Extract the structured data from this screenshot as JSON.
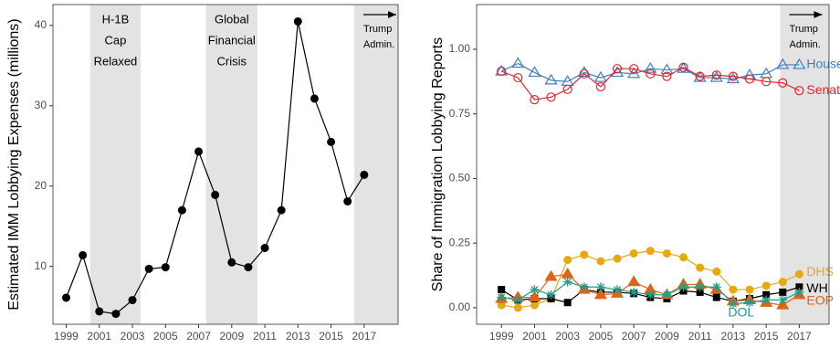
{
  "chart_data": [
    {
      "type": "line",
      "y_label": "Estimated IMM Lobbying Expenses (millions)",
      "x": [
        1999,
        2000,
        2001,
        2002,
        2003,
        2004,
        2005,
        2006,
        2007,
        2008,
        2009,
        2010,
        2011,
        2012,
        2013,
        2014,
        2015,
        2016,
        2017
      ],
      "series": [
        {
          "name": null,
          "color": "#000000",
          "marker": "circle",
          "values": [
            6.1,
            11.4,
            4.4,
            4.1,
            5.8,
            9.7,
            9.9,
            17.0,
            24.3,
            18.9,
            10.5,
            9.9,
            12.3,
            17.0,
            40.5,
            30.9,
            25.5,
            18.1,
            21.4
          ]
        }
      ],
      "xlim": [
        1998.2,
        2019.05
      ],
      "ylim": [
        2.8,
        42.6
      ],
      "xticks": [
        1999,
        2001,
        2003,
        2005,
        2007,
        2009,
        2011,
        2013,
        2015,
        2017
      ],
      "yticks": [
        10,
        20,
        30,
        40
      ],
      "shaded_regions": [
        {
          "start": 2000.45,
          "end": 2003.5,
          "label": [
            "H-1B",
            "Cap",
            "Relaxed"
          ]
        },
        {
          "start": 2007.45,
          "end": 2010.55,
          "label": [
            "Global",
            "Financial",
            "Crisis"
          ]
        },
        {
          "start": 2016.4,
          "end": 2019.05,
          "label": [
            "Trump",
            "Admin."
          ],
          "arrow": true
        }
      ]
    },
    {
      "type": "line",
      "y_label": "Share of Immigration Lobbying Reports",
      "x": [
        1999,
        2000,
        2001,
        2002,
        2003,
        2004,
        2005,
        2006,
        2007,
        2008,
        2009,
        2010,
        2011,
        2012,
        2013,
        2014,
        2015,
        2016,
        2017
      ],
      "series": [
        {
          "name": "House",
          "color": "#3d7fc1",
          "marker": "triangle-open",
          "values": [
            0.915,
            0.945,
            0.91,
            0.88,
            0.875,
            0.91,
            0.89,
            0.91,
            0.905,
            0.925,
            0.92,
            0.925,
            0.89,
            0.89,
            0.885,
            0.9,
            0.905,
            0.94,
            0.94
          ]
        },
        {
          "name": "Senate",
          "color": "#e0262b",
          "marker": "circle-open",
          "values": [
            0.915,
            0.89,
            0.805,
            0.815,
            0.845,
            0.905,
            0.855,
            0.925,
            0.925,
            0.905,
            0.895,
            0.93,
            0.895,
            0.9,
            0.895,
            0.885,
            0.875,
            0.87,
            0.84
          ]
        },
        {
          "name": "DHS",
          "color": "#e8a812",
          "marker": "circle",
          "values": [
            0.01,
            0.0,
            0.01,
            0.035,
            0.185,
            0.205,
            0.18,
            0.19,
            0.21,
            0.22,
            0.21,
            0.195,
            0.155,
            0.14,
            0.07,
            0.07,
            0.085,
            0.1,
            0.13
          ]
        },
        {
          "name": "WH",
          "color": "#000000",
          "marker": "square",
          "values": [
            0.07,
            0.03,
            0.035,
            0.035,
            0.02,
            0.07,
            0.06,
            0.06,
            0.055,
            0.04,
            0.035,
            0.065,
            0.06,
            0.04,
            0.025,
            0.035,
            0.05,
            0.06,
            0.08
          ]
        },
        {
          "name": "EOP",
          "color": "#dd6418",
          "marker": "triangle",
          "values": [
            0.035,
            0.04,
            0.04,
            0.12,
            0.13,
            0.07,
            0.05,
            0.055,
            0.1,
            0.07,
            0.05,
            0.09,
            0.09,
            0.07,
            0.025,
            0.03,
            0.02,
            0.01,
            0.05
          ]
        },
        {
          "name": "DOL",
          "color": "#1ea08a",
          "marker": "asterisk",
          "values": [
            0.04,
            0.03,
            0.07,
            0.05,
            0.1,
            0.08,
            0.08,
            0.07,
            0.06,
            0.05,
            0.05,
            0.08,
            0.08,
            0.08,
            0.015,
            0.02,
            0.03,
            0.03,
            0.06
          ]
        }
      ],
      "xlim": [
        1997.5,
        2018.8
      ],
      "ylim": [
        -0.064,
        1.173
      ],
      "xticks": [
        1999,
        2001,
        2003,
        2005,
        2007,
        2009,
        2011,
        2013,
        2015,
        2017
      ],
      "yticks": [
        {
          "value": 0,
          "label": "0.00"
        },
        {
          "value": 0.25,
          "label": "0.25"
        },
        {
          "value": 0.5,
          "label": "0.50"
        },
        {
          "value": 0.75,
          "label": "0.75"
        },
        {
          "value": 1,
          "label": "1.00"
        }
      ],
      "shaded_regions": [
        {
          "start": 2015.85,
          "end": 2018.8,
          "label": [
            "Trump",
            "Admin."
          ],
          "arrow": true
        }
      ]
    }
  ]
}
